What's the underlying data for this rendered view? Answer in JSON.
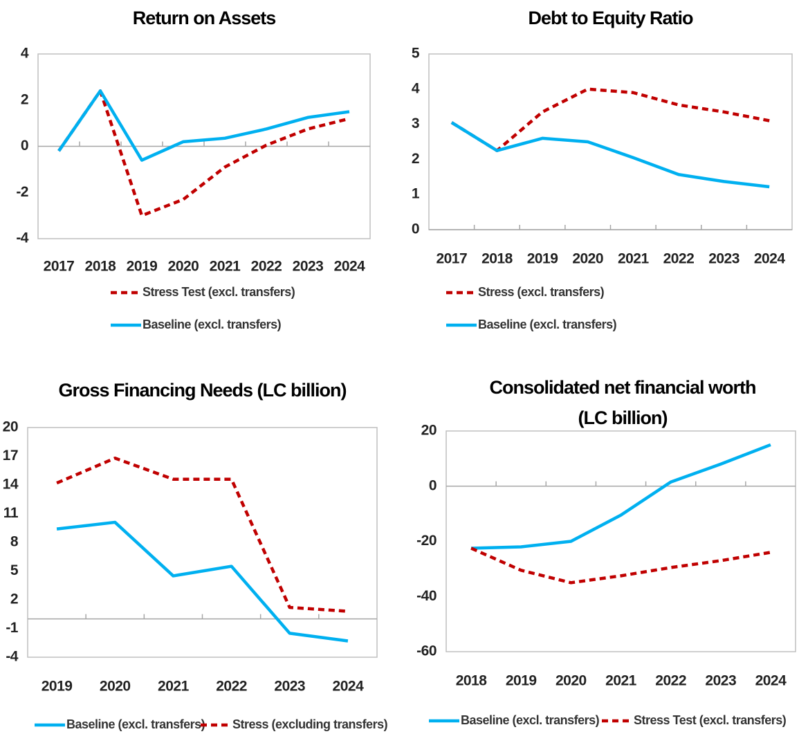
{
  "chart_data": [
    {
      "type": "line",
      "title": "Return on Assets",
      "categories": [
        "2017",
        "2018",
        "2019",
        "2020",
        "2021",
        "2022",
        "2023",
        "2024"
      ],
      "ylim": [
        -4,
        4
      ],
      "yticks": [
        -4,
        -2,
        0,
        2,
        4
      ],
      "series": [
        {
          "name": "Stress Test (excl. transfers)",
          "color": "#c00000",
          "style": "dashed",
          "values": [
            -0.2,
            2.4,
            -3.0,
            -2.3,
            -0.9,
            0.05,
            0.75,
            1.2
          ]
        },
        {
          "name": "Baseline (excl. transfers)",
          "color": "#00b0f0",
          "style": "solid",
          "values": [
            -0.2,
            2.4,
            -0.6,
            0.2,
            0.35,
            0.75,
            1.25,
            1.5
          ]
        }
      ]
    },
    {
      "type": "line",
      "title": "Debt to Equity Ratio",
      "categories": [
        "2017",
        "2018",
        "2019",
        "2020",
        "2021",
        "2022",
        "2023",
        "2024"
      ],
      "ylim": [
        0,
        5
      ],
      "yticks": [
        0,
        1,
        2,
        3,
        4,
        5
      ],
      "series": [
        {
          "name": "Stress (excl. transfers)",
          "color": "#c00000",
          "style": "dashed",
          "values": [
            3.05,
            2.25,
            3.35,
            4.0,
            3.9,
            3.55,
            3.35,
            3.1
          ]
        },
        {
          "name": "Baseline (excl. transfers)",
          "color": "#00b0f0",
          "style": "solid",
          "values": [
            3.05,
            2.25,
            2.6,
            2.5,
            2.05,
            1.57,
            1.37,
            1.22
          ]
        }
      ]
    },
    {
      "type": "line",
      "title": "Gross Financing Needs (LC billion)",
      "categories": [
        "2019",
        "2020",
        "2021",
        "2022",
        "2023",
        "2024"
      ],
      "ylim": [
        -4,
        20
      ],
      "yticks": [
        -4,
        -1,
        2,
        5,
        8,
        11,
        14,
        17,
        20
      ],
      "series": [
        {
          "name": "Baseline (excl. transfers)",
          "color": "#00b0f0",
          "style": "solid",
          "values": [
            9.4,
            10.1,
            4.5,
            5.5,
            -1.5,
            -2.3
          ]
        },
        {
          "name": "Stress (excluding transfers)",
          "color": "#c00000",
          "style": "dashed",
          "values": [
            14.2,
            16.8,
            14.6,
            14.6,
            1.2,
            0.8
          ]
        }
      ]
    },
    {
      "type": "line",
      "title": "Consolidated net financial worth (LC billion)",
      "categories": [
        "2018",
        "2019",
        "2020",
        "2021",
        "2022",
        "2023",
        "2024"
      ],
      "ylim": [
        -60,
        20
      ],
      "yticks": [
        -60,
        -40,
        -20,
        0,
        20
      ],
      "series": [
        {
          "name": "Baseline (excl. transfers)",
          "color": "#00b0f0",
          "style": "solid",
          "values": [
            -22.5,
            -22,
            -20,
            -10.5,
            1.5,
            8,
            15
          ]
        },
        {
          "name": "Stress Test (excl. transfers)",
          "color": "#c00000",
          "style": "dashed",
          "values": [
            -22.5,
            -30.5,
            -35,
            -32.5,
            -29.5,
            -27,
            -24
          ]
        }
      ]
    }
  ]
}
